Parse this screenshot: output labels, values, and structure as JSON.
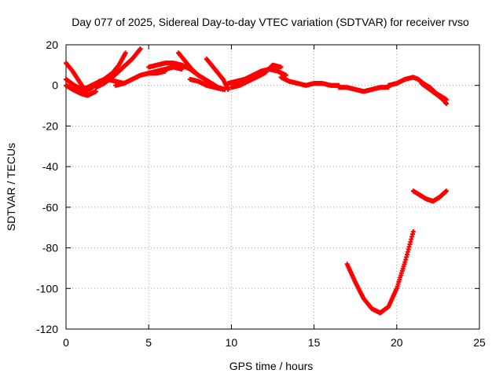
{
  "chart_data": {
    "type": "scatter",
    "title": "Day 077 of 2025, Sidereal Day-to-day VTEC variation (SDTVAR) for receiver rvso",
    "xlabel": "GPS time / hours",
    "ylabel": "SDTVAR / TECUs",
    "xlim": [
      0,
      25
    ],
    "ylim": [
      -120,
      20
    ],
    "xticks": [
      0,
      5,
      10,
      15,
      20,
      25
    ],
    "yticks": [
      -120,
      -100,
      -80,
      -60,
      -40,
      -20,
      0,
      20
    ],
    "xtick_labels": [
      "0",
      "5",
      "10",
      "15",
      "20",
      "25"
    ],
    "ytick_labels": [
      "-120",
      "-100",
      "-80",
      "-60",
      "-40",
      "-20",
      "0",
      "20"
    ],
    "grid": true,
    "grid_style": "dotted",
    "marker": "plus",
    "color": "#ff0000",
    "series": [
      {
        "x": [
          0.0,
          0.4,
          0.8,
          1.2,
          1.6,
          2.0,
          2.5,
          3.0,
          3.5
        ],
        "y": [
          11,
          7,
          2,
          -3,
          -1,
          2,
          3,
          2,
          1
        ]
      },
      {
        "x": [
          0.0,
          0.5,
          1.0,
          1.3,
          1.8,
          2.3,
          2.8,
          3.2,
          3.6
        ],
        "y": [
          3,
          0,
          -2,
          -1,
          1,
          3,
          6,
          10,
          16
        ]
      },
      {
        "x": [
          0.0,
          0.4,
          0.9,
          1.3,
          1.8
        ],
        "y": [
          0,
          -2,
          -4,
          -5,
          -3
        ]
      },
      {
        "x": [
          1.8,
          2.3,
          2.8,
          3.2,
          3.6,
          4.0,
          4.3,
          4.5
        ],
        "y": [
          -1,
          1,
          4,
          7,
          10,
          13,
          16,
          18
        ]
      },
      {
        "x": [
          3.0,
          3.5,
          4.0,
          4.5,
          5.0,
          5.5,
          6.0
        ],
        "y": [
          0,
          1,
          3,
          5,
          6,
          6,
          7
        ]
      },
      {
        "x": [
          5.0,
          5.5,
          6.0,
          6.5,
          7.0,
          7.5,
          8.0
        ],
        "y": [
          9,
          10,
          11,
          11,
          10,
          8,
          5
        ]
      },
      {
        "x": [
          5.0,
          5.5,
          6.0,
          6.5,
          7.0
        ],
        "y": [
          6,
          7,
          8,
          9,
          8
        ]
      },
      {
        "x": [
          6.8,
          7.2,
          7.6,
          8.0,
          8.4,
          8.8,
          9.2,
          9.6
        ],
        "y": [
          16,
          12,
          8,
          5,
          3,
          1,
          -1,
          -2
        ]
      },
      {
        "x": [
          8.5,
          9.0,
          9.5,
          9.8
        ],
        "y": [
          13,
          8,
          3,
          -2
        ]
      },
      {
        "x": [
          7.5,
          8.0,
          8.5,
          9.0,
          9.5
        ],
        "y": [
          3,
          2,
          0,
          -1,
          -2
        ]
      },
      {
        "x": [
          9.8,
          10.3,
          10.8,
          11.3,
          11.8,
          12.3,
          12.8,
          13.3
        ],
        "y": [
          1,
          2,
          3,
          5,
          7,
          8,
          7,
          5
        ]
      },
      {
        "x": [
          10.0,
          10.5,
          11.0,
          11.5,
          12.0,
          12.5,
          13.0
        ],
        "y": [
          -1,
          0,
          2,
          4,
          6,
          10,
          9
        ]
      },
      {
        "x": [
          13.0,
          13.5,
          14.0,
          14.5,
          15.0,
          15.5,
          16.0,
          16.5
        ],
        "y": [
          4,
          2,
          1,
          0,
          1,
          1,
          0,
          0
        ]
      },
      {
        "x": [
          16.5,
          17.0,
          17.5,
          18.0,
          18.5,
          19.0,
          19.5
        ],
        "y": [
          -1,
          -1,
          -2,
          -3,
          -2,
          -1,
          -1
        ]
      },
      {
        "x": [
          19.5,
          20.0,
          20.5,
          21.0,
          21.3,
          21.6,
          22.0,
          22.4,
          22.8,
          23.0
        ],
        "y": [
          0,
          1,
          3,
          4,
          3,
          1,
          -1,
          -4,
          -6,
          -7
        ]
      },
      {
        "x": [
          21.5,
          22.0,
          22.5,
          22.8,
          23.0
        ],
        "y": [
          1,
          -2,
          -5,
          -7,
          -9
        ]
      },
      {
        "x": [
          21.0,
          21.4,
          21.8,
          22.2,
          22.6,
          23.0
        ],
        "y": [
          -52,
          -54,
          -56,
          -57,
          -55,
          -52
        ]
      },
      {
        "x": [
          17.0,
          17.5,
          18.0,
          18.5,
          19.0,
          19.5,
          20.0,
          20.5,
          21.0
        ],
        "y": [
          -88,
          -97,
          -105,
          -110,
          -112,
          -109,
          -100,
          -87,
          -72
        ]
      }
    ]
  }
}
